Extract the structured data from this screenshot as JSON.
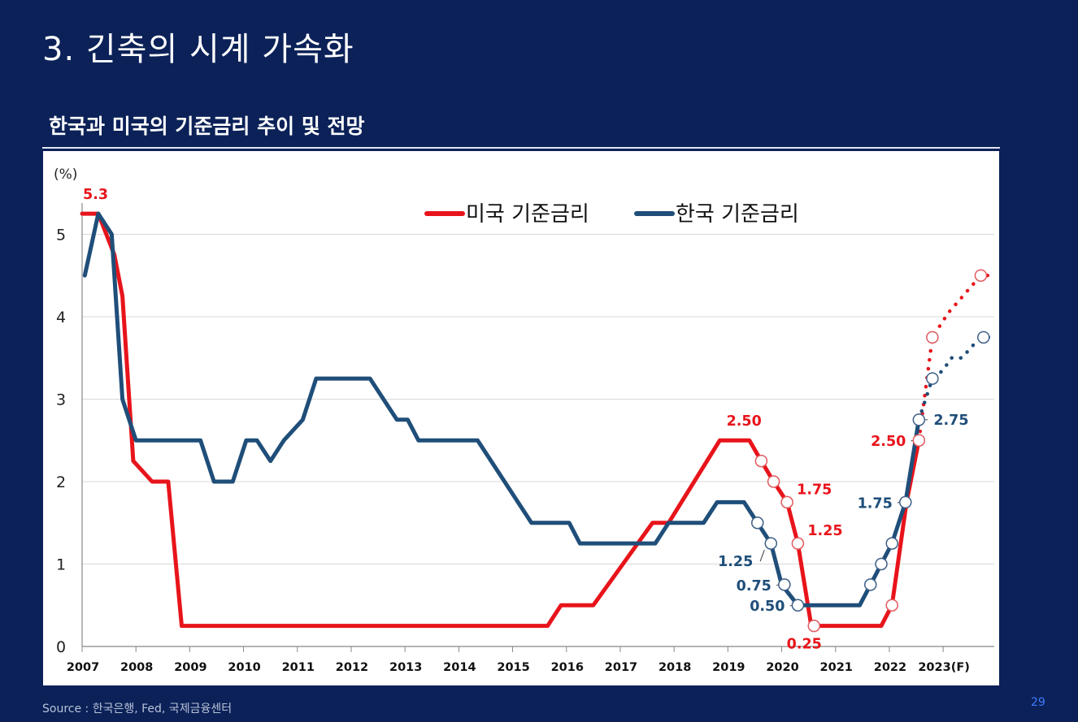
{
  "slide": {
    "title": "3. 긴축의 시계 가속화",
    "subtitle": "한국과 미국의 기준금리 추이 및 전망",
    "source": "Source : 한국은행, Fed, 국제금융센터",
    "page_number": "29"
  },
  "chart_data": {
    "type": "line",
    "title": "한국과 미국의 기준금리 추이 및 전망",
    "ylabel": "(%)",
    "xlabel": "",
    "ylim": [
      0,
      5.3
    ],
    "yticks": [
      0,
      1,
      2,
      3,
      4,
      5
    ],
    "xlim": [
      2007.0,
      2023.95
    ],
    "xticks": [
      2007,
      2008,
      2009,
      2010,
      2011,
      2012,
      2013,
      2014,
      2015,
      2016,
      2017,
      2018,
      2019,
      2020,
      2021,
      2022,
      2023
    ],
    "xtick_labels": [
      "2007",
      "2008",
      "2009",
      "2010",
      "2011",
      "2012",
      "2013",
      "2014",
      "2015",
      "2016",
      "2017",
      "2018",
      "2019",
      "2020",
      "2021",
      "2022",
      "2023(F)"
    ],
    "legend": {
      "position": "top-center"
    },
    "colors": {
      "us": "#e8141b",
      "kr": "#1f4e79",
      "grid": "#d9d9d9",
      "axis": "#888888"
    },
    "series": [
      {
        "name": "미국 기준금리",
        "key": "us",
        "points": [
          [
            2007.0,
            5.25
          ],
          [
            2007.3,
            5.25
          ],
          [
            2007.6,
            4.75
          ],
          [
            2007.75,
            4.25
          ],
          [
            2007.95,
            2.25
          ],
          [
            2008.3,
            2.0
          ],
          [
            2008.6,
            2.0
          ],
          [
            2008.85,
            0.25
          ],
          [
            2015.65,
            0.25
          ],
          [
            2015.9,
            0.5
          ],
          [
            2016.5,
            0.5
          ],
          [
            2017.6,
            1.5
          ],
          [
            2017.9,
            1.5
          ],
          [
            2018.85,
            2.5
          ],
          [
            2019.4,
            2.5
          ],
          [
            2019.62,
            2.25
          ],
          [
            2019.85,
            2.0
          ],
          [
            2020.1,
            1.75
          ],
          [
            2020.3,
            1.25
          ],
          [
            2020.55,
            0.25
          ],
          [
            2021.85,
            0.25
          ],
          [
            2022.05,
            0.5
          ],
          [
            2022.32,
            1.75
          ],
          [
            2022.55,
            2.5
          ]
        ],
        "forecast": [
          [
            2022.55,
            2.5
          ],
          [
            2022.8,
            3.75
          ],
          [
            2022.95,
            3.9
          ],
          [
            2023.1,
            4.05
          ],
          [
            2023.3,
            4.2
          ],
          [
            2023.5,
            4.35
          ],
          [
            2023.7,
            4.5
          ],
          [
            2023.9,
            4.5
          ]
        ],
        "markers": [
          [
            2019.62,
            2.25
          ],
          [
            2019.85,
            2.0
          ],
          [
            2020.1,
            1.75
          ],
          [
            2020.3,
            1.25
          ],
          [
            2020.6,
            0.25
          ],
          [
            2022.05,
            0.5
          ],
          [
            2022.55,
            2.5
          ],
          [
            2022.8,
            3.75
          ],
          [
            2023.7,
            4.5
          ]
        ]
      },
      {
        "name": "한국 기준금리",
        "key": "kr",
        "points": [
          [
            2007.05,
            4.5
          ],
          [
            2007.3,
            5.25
          ],
          [
            2007.55,
            5.0
          ],
          [
            2007.75,
            3.0
          ],
          [
            2008.0,
            2.5
          ],
          [
            2009.2,
            2.5
          ],
          [
            2009.45,
            2.0
          ],
          [
            2009.8,
            2.0
          ],
          [
            2010.05,
            2.5
          ],
          [
            2010.25,
            2.5
          ],
          [
            2010.5,
            2.25
          ],
          [
            2010.75,
            2.5
          ],
          [
            2011.1,
            2.75
          ],
          [
            2011.35,
            3.25
          ],
          [
            2012.35,
            3.25
          ],
          [
            2012.85,
            2.75
          ],
          [
            2013.05,
            2.75
          ],
          [
            2013.25,
            2.5
          ],
          [
            2014.35,
            2.5
          ],
          [
            2015.35,
            1.5
          ],
          [
            2015.8,
            1.5
          ],
          [
            2016.05,
            1.5
          ],
          [
            2016.25,
            1.25
          ],
          [
            2017.65,
            1.25
          ],
          [
            2017.9,
            1.5
          ],
          [
            2018.55,
            1.5
          ],
          [
            2018.8,
            1.75
          ],
          [
            2019.3,
            1.75
          ],
          [
            2019.55,
            1.5
          ],
          [
            2019.8,
            1.25
          ],
          [
            2020.0,
            0.75
          ],
          [
            2020.3,
            0.5
          ],
          [
            2020.55,
            0.5
          ],
          [
            2021.45,
            0.5
          ],
          [
            2021.65,
            0.75
          ],
          [
            2021.85,
            1.0
          ],
          [
            2022.05,
            1.25
          ],
          [
            2022.3,
            1.75
          ],
          [
            2022.55,
            2.75
          ]
        ],
        "forecast": [
          [
            2022.55,
            2.75
          ],
          [
            2022.8,
            3.25
          ],
          [
            2023.0,
            3.35
          ],
          [
            2023.15,
            3.5
          ],
          [
            2023.35,
            3.5
          ],
          [
            2023.55,
            3.65
          ],
          [
            2023.75,
            3.75
          ],
          [
            2023.9,
            3.75
          ]
        ],
        "markers": [
          [
            2019.55,
            1.5
          ],
          [
            2019.8,
            1.25
          ],
          [
            2020.05,
            0.75
          ],
          [
            2020.3,
            0.5
          ],
          [
            2021.65,
            0.75
          ],
          [
            2021.85,
            1.0
          ],
          [
            2022.05,
            1.25
          ],
          [
            2022.3,
            1.75
          ],
          [
            2022.55,
            2.75
          ],
          [
            2022.8,
            3.25
          ],
          [
            2023.75,
            3.75
          ]
        ]
      }
    ],
    "annotations": [
      {
        "text": "5.3",
        "series": "us",
        "x": 2007.25,
        "y": 5.25,
        "pos": "above"
      },
      {
        "text": "2.50",
        "series": "us",
        "x": 2019.3,
        "y": 2.5,
        "pos": "above"
      },
      {
        "text": "1.75",
        "series": "us",
        "x": 2020.1,
        "y": 1.75,
        "pos": "right-up"
      },
      {
        "text": "1.25",
        "series": "us",
        "x": 2020.3,
        "y": 1.25,
        "pos": "right-up"
      },
      {
        "text": "0.25",
        "series": "us",
        "x": 2020.6,
        "y": 0.25,
        "pos": "below-left"
      },
      {
        "text": "2.50",
        "series": "us",
        "x": 2022.55,
        "y": 2.5,
        "pos": "left"
      },
      {
        "text": "1.25",
        "series": "kr",
        "x": 2019.8,
        "y": 1.25,
        "pos": "left-below"
      },
      {
        "text": "0.75",
        "series": "kr",
        "x": 2020.05,
        "y": 0.75,
        "pos": "left"
      },
      {
        "text": "0.50",
        "series": "kr",
        "x": 2020.3,
        "y": 0.5,
        "pos": "left"
      },
      {
        "text": "1.75",
        "series": "kr",
        "x": 2022.3,
        "y": 1.75,
        "pos": "left"
      },
      {
        "text": "2.75",
        "series": "kr",
        "x": 2022.55,
        "y": 2.75,
        "pos": "right"
      }
    ]
  }
}
